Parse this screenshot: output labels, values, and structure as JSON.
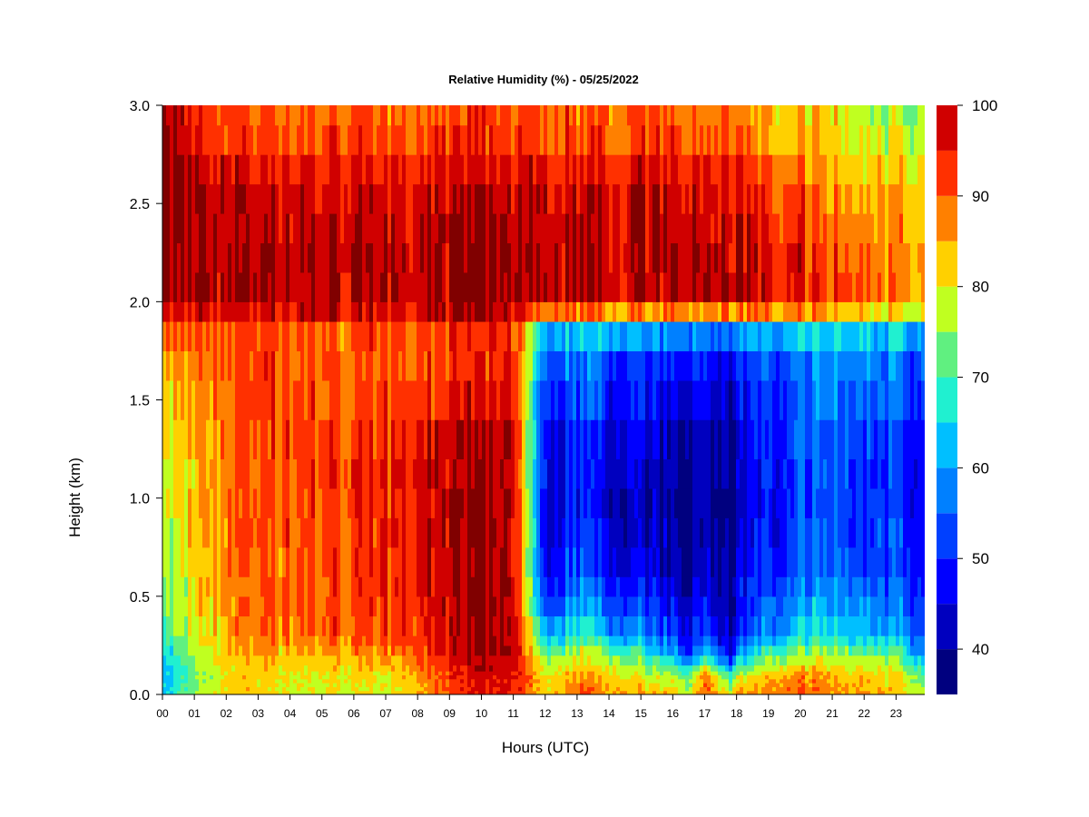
{
  "chart_data": {
    "type": "heatmap",
    "title": "Relative Humidity (%) - 05/25/2022",
    "xlabel": "Hours (UTC)",
    "ylabel": "Height (km)",
    "xlim": [
      0,
      23.9
    ],
    "ylim": [
      0,
      3.0
    ],
    "x_ticks": [
      "00",
      "01",
      "02",
      "03",
      "04",
      "05",
      "06",
      "07",
      "08",
      "09",
      "10",
      "11",
      "12",
      "13",
      "14",
      "15",
      "16",
      "17",
      "18",
      "19",
      "20",
      "21",
      "22",
      "23"
    ],
    "y_ticks": [
      "0.0",
      "0.5",
      "1.0",
      "1.5",
      "2.0",
      "2.5",
      "3.0"
    ],
    "colorbar": {
      "range": [
        35,
        100
      ],
      "levels": [
        35,
        40,
        45,
        50,
        55,
        60,
        65,
        70,
        75,
        80,
        85,
        90,
        95,
        100
      ],
      "labels": [
        "40",
        "50",
        "60",
        "70",
        "80",
        "90",
        "100"
      ],
      "colors": [
        "#00007f",
        "#0000bf",
        "#0000ff",
        "#0040ff",
        "#0080ff",
        "#00bfff",
        "#20f0d0",
        "#60f080",
        "#c0ff20",
        "#ffd000",
        "#ff8000",
        "#ff3000",
        "#d00000",
        "#800000"
      ]
    },
    "heights_km": [
      0.0,
      0.1,
      0.2,
      0.3,
      0.5,
      0.7,
      1.0,
      1.3,
      1.6,
      1.8,
      2.0,
      2.3,
      2.6,
      2.8,
      3.0
    ],
    "hours": [
      0,
      1,
      2,
      3,
      4,
      5,
      6,
      7,
      8,
      9,
      10,
      11,
      12,
      13,
      14,
      15,
      16,
      16.5,
      17,
      17.8,
      18,
      19,
      20,
      21,
      22,
      23,
      23.9
    ],
    "rh_percent": [
      [
        64,
        74,
        82,
        82,
        79,
        79,
        80,
        78,
        84,
        91,
        95,
        94,
        82,
        90,
        87,
        85,
        84,
        78,
        91,
        80,
        85,
        89,
        91,
        87,
        85,
        84,
        77
      ],
      [
        60,
        73,
        81,
        82,
        80,
        80,
        81,
        80,
        86,
        93,
        97,
        96,
        80,
        85,
        83,
        79,
        75,
        70,
        88,
        68,
        76,
        83,
        87,
        85,
        82,
        82,
        70
      ],
      [
        62,
        75,
        82,
        84,
        84,
        85,
        86,
        86,
        91,
        96,
        100,
        98,
        74,
        78,
        75,
        70,
        61,
        52,
        66,
        46,
        58,
        72,
        76,
        77,
        74,
        74,
        56
      ],
      [
        67,
        78,
        84,
        87,
        89,
        90,
        90,
        91,
        94,
        97,
        100,
        98,
        62,
        68,
        63,
        59,
        52,
        46,
        55,
        40,
        48,
        60,
        65,
        66,
        63,
        62,
        52
      ],
      [
        72,
        80,
        86,
        88,
        90,
        91,
        92,
        93,
        96,
        98,
        100,
        99,
        50,
        58,
        53,
        50,
        45,
        40,
        48,
        38,
        44,
        55,
        58,
        60,
        56,
        55,
        48
      ],
      [
        74,
        81,
        86,
        89,
        90,
        91,
        92,
        93,
        97,
        98,
        100,
        98,
        46,
        52,
        47,
        44,
        42,
        38,
        44,
        36,
        42,
        50,
        54,
        56,
        52,
        52,
        46
      ],
      [
        76,
        82,
        87,
        90,
        91,
        92,
        93,
        94,
        97,
        99,
        100,
        98,
        46,
        48,
        44,
        42,
        40,
        37,
        42,
        36,
        40,
        48,
        52,
        54,
        50,
        50,
        44
      ],
      [
        78,
        83,
        88,
        90,
        91,
        92,
        92,
        93,
        96,
        98,
        100,
        98,
        48,
        50,
        46,
        45,
        42,
        40,
        44,
        38,
        42,
        50,
        54,
        56,
        52,
        52,
        46
      ],
      [
        82,
        86,
        89,
        91,
        91,
        91,
        90,
        91,
        92,
        93,
        95,
        94,
        52,
        55,
        52,
        50,
        48,
        44,
        48,
        42,
        47,
        52,
        56,
        58,
        55,
        55,
        50
      ],
      [
        86,
        88,
        89,
        90,
        90,
        90,
        89,
        90,
        90,
        91,
        92,
        92,
        56,
        58,
        56,
        54,
        52,
        50,
        52,
        48,
        52,
        56,
        60,
        62,
        60,
        58,
        54
      ],
      [
        100,
        99,
        98,
        99,
        99,
        100,
        98,
        99,
        99,
        100,
        100,
        99,
        98,
        99,
        98,
        98,
        98,
        99,
        100,
        99,
        99,
        97,
        96,
        92,
        90,
        88,
        84
      ],
      [
        100,
        100,
        99,
        98,
        99,
        99,
        99,
        98,
        99,
        100,
        100,
        99,
        99,
        99,
        99,
        100,
        100,
        99,
        99,
        98,
        98,
        96,
        95,
        91,
        88,
        86,
        84
      ],
      [
        100,
        99,
        98,
        97,
        97,
        97,
        97,
        97,
        97,
        98,
        98,
        97,
        98,
        97,
        97,
        98,
        97,
        96,
        96,
        95,
        94,
        92,
        90,
        87,
        84,
        83,
        82
      ],
      [
        100,
        96,
        92,
        91,
        91,
        91,
        92,
        91,
        92,
        93,
        93,
        92,
        92,
        91,
        91,
        92,
        92,
        90,
        91,
        90,
        89,
        86,
        85,
        82,
        80,
        79,
        78
      ],
      [
        100,
        93,
        90,
        89,
        90,
        89,
        90,
        89,
        89,
        90,
        91,
        90,
        90,
        89,
        89,
        90,
        90,
        88,
        89,
        88,
        86,
        84,
        82,
        80,
        76,
        74,
        72
      ]
    ]
  }
}
